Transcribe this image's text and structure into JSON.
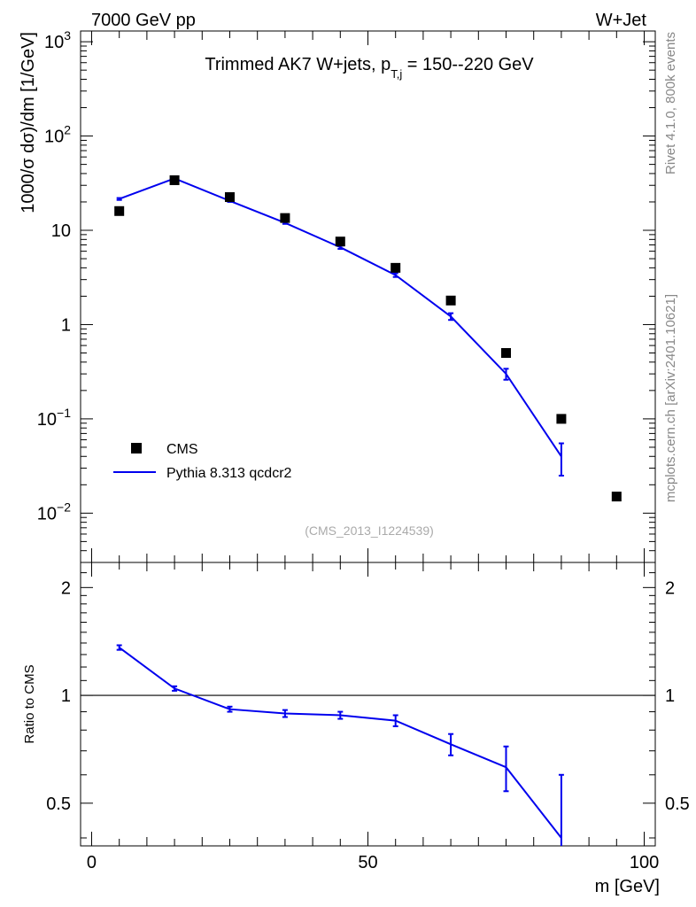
{
  "header": {
    "left": "7000 GeV pp",
    "right": "W+Jet"
  },
  "side_labels": {
    "rivet": "Rivet 4.1.0,  800k events",
    "mcplots": "mcplots.cern.ch [arXiv:2401.10621]"
  },
  "chart_data": [
    {
      "type": "scatter",
      "title": "Trimmed AK7 W+jets, p_T,j = 150--220 GeV",
      "title_parts": {
        "main": "Trimmed AK7 W+jets, p",
        "sub": "T,j",
        "rest": " = 150--220 GeV"
      },
      "ylabel": "1000/σ  dσ)/dm [1/GeV]",
      "xlabel": "m [GeV]",
      "yscale": "log",
      "ylim": [
        0.003,
        1300
      ],
      "xlim": [
        -2,
        102
      ],
      "yticks": [
        {
          "v": 1000,
          "base": "10",
          "exp": "3"
        },
        {
          "v": 100,
          "base": "10",
          "exp": "2"
        },
        {
          "v": 10,
          "base": "10",
          "exp": ""
        },
        {
          "v": 1,
          "base": "1",
          "exp": ""
        },
        {
          "v": 0.1,
          "base": "10",
          "exp": "−1"
        },
        {
          "v": 0.01,
          "base": "10",
          "exp": "−2"
        }
      ],
      "watermark": "(CMS_2013_I1224539)",
      "legend": {
        "position": "lower-left",
        "entries": [
          "CMS",
          "Pythia 8.313 qcdcr2"
        ]
      },
      "series": [
        {
          "name": "CMS",
          "style": "markers",
          "color": "#000000",
          "x": [
            5,
            15,
            25,
            35,
            45,
            55,
            65,
            75,
            85,
            95
          ],
          "y": [
            16,
            34,
            22.5,
            13.5,
            7.6,
            4.0,
            1.8,
            0.5,
            0.1,
            0.015
          ]
        },
        {
          "name": "Pythia 8.313 qcdcr2",
          "style": "line",
          "color": "#0000ee",
          "x": [
            5,
            15,
            25,
            35,
            45,
            55,
            65,
            75,
            85
          ],
          "y": [
            21.5,
            35.5,
            20.5,
            12.0,
            6.6,
            3.35,
            1.22,
            0.3,
            0.04
          ],
          "yerr": [
            0.5,
            0.6,
            0.5,
            0.3,
            0.25,
            0.15,
            0.1,
            0.04,
            0.015
          ]
        }
      ]
    },
    {
      "type": "line",
      "ylabel": "Ratio to CMS",
      "xlabel": "m [GeV]",
      "yscale": "log",
      "ylim": [
        0.38,
        2.35
      ],
      "xlim": [
        -2,
        102
      ],
      "xticks": [
        0,
        50,
        100
      ],
      "yticks": [
        {
          "v": 2,
          "label": "2"
        },
        {
          "v": 1,
          "label": "1"
        },
        {
          "v": 0.5,
          "label": "0.5"
        }
      ],
      "reference": 1,
      "series": [
        {
          "name": "Pythia 8.313 qcdcr2",
          "color": "#0000ee",
          "x": [
            5,
            15,
            25,
            35,
            45,
            55,
            65,
            75,
            85
          ],
          "y": [
            1.36,
            1.045,
            0.915,
            0.89,
            0.88,
            0.85,
            0.73,
            0.63,
            0.4
          ],
          "yerr": [
            0.02,
            0.015,
            0.015,
            0.02,
            0.02,
            0.03,
            0.05,
            0.09,
            0.2
          ]
        }
      ]
    }
  ]
}
